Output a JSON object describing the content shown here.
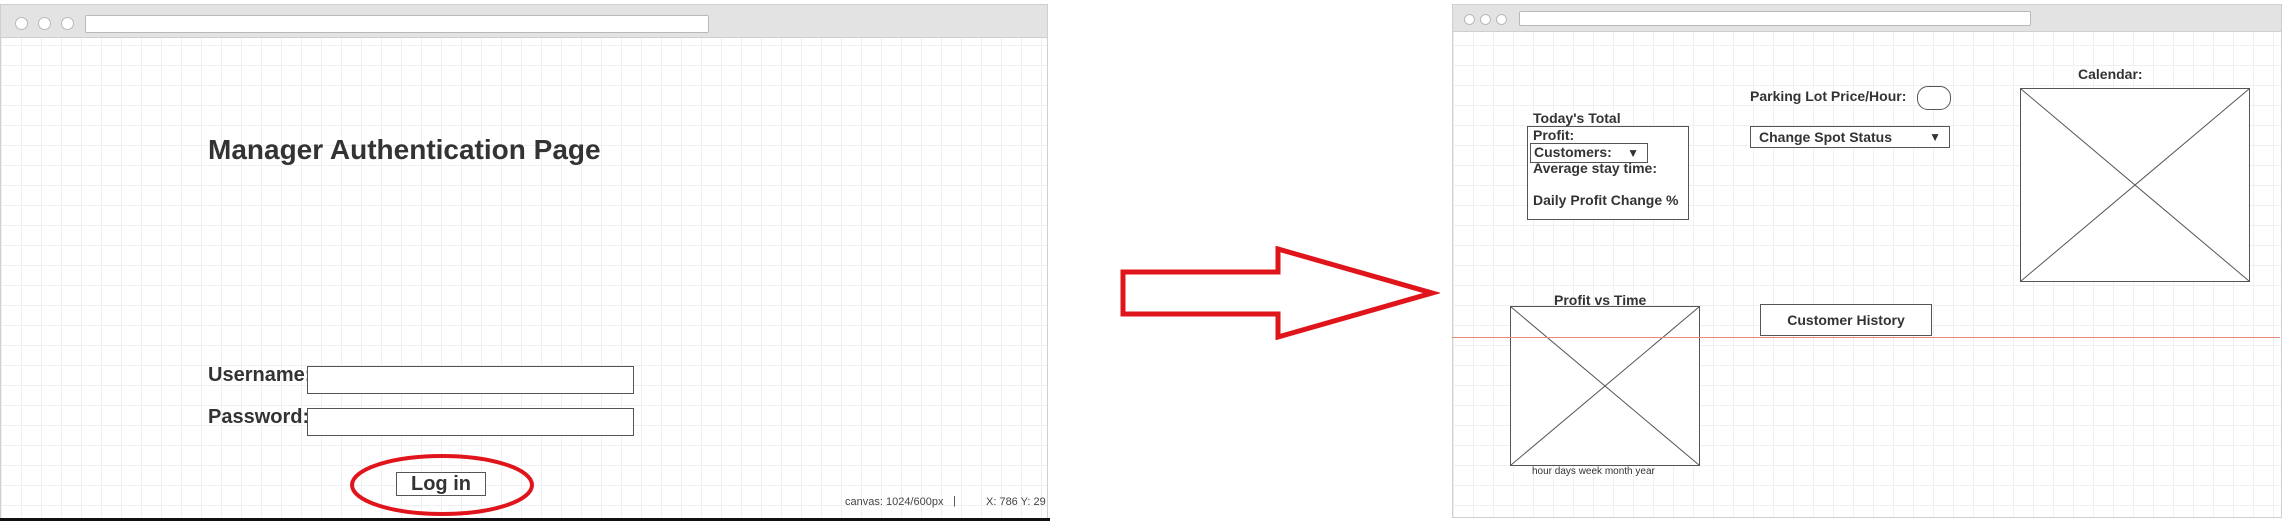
{
  "left_screen": {
    "title": "Manager Authentication Page",
    "username_label": "Username:",
    "username_value": "",
    "password_label": "Password:",
    "password_value": "",
    "login_label": "Log in",
    "status_canvas": "canvas: 1024/600px",
    "status_separator": "|",
    "status_coords": "X: 786 Y: 29"
  },
  "right_screen": {
    "todays_total_profit_label": "Today's Total Profit:",
    "customers_label": "Customers:",
    "customers_arrow": "▼",
    "average_stay_label": "Average stay time:",
    "daily_profit_change_label": "Daily Profit Change %",
    "parking_price_label": "Parking Lot Price/Hour:",
    "parking_price_value": "",
    "change_spot_status_label": "Change Spot Status",
    "change_spot_arrow": "▼",
    "calendar_label": "Calendar:",
    "profit_vs_time_label": "Profit vs Time",
    "profit_vs_time_options": "hour days week month year",
    "customer_history_label": "Customer History"
  },
  "colors": {
    "annotation_red": "#e0151b",
    "grid_line": "#eef0f2",
    "wire_stroke": "#555555"
  },
  "icons": {
    "transition_arrow": "right-arrow-icon",
    "login_highlight": "ellipse-highlight"
  }
}
